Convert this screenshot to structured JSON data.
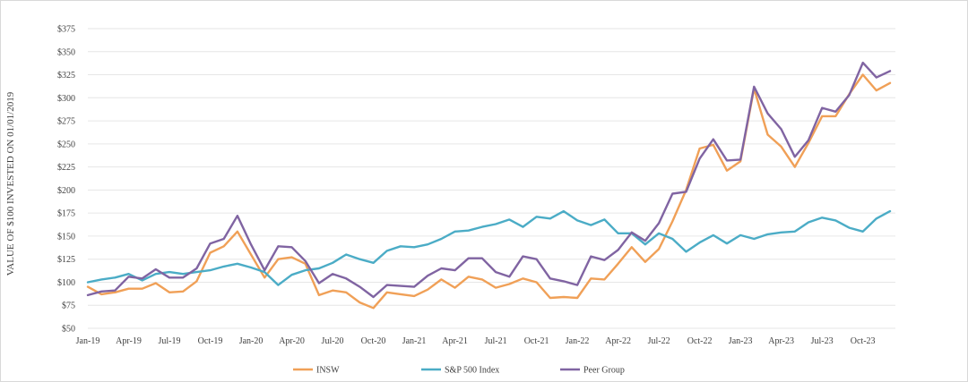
{
  "chart_data": {
    "type": "line",
    "title": "",
    "xlabel": "",
    "ylabel": "VALUE OF $100 INVESTED ON 01/01/2019",
    "ylim": [
      50,
      375
    ],
    "y_ticks": [
      50,
      75,
      100,
      125,
      150,
      175,
      200,
      225,
      250,
      275,
      300,
      325,
      350,
      375
    ],
    "y_tick_labels": [
      "$50",
      "$75",
      "$100",
      "$125",
      "$150",
      "$175",
      "$200",
      "$225",
      "$250",
      "$275",
      "$300",
      "$325",
      "$350",
      "$375"
    ],
    "x_tick_labels": [
      "Jan-19",
      "Apr-19",
      "Jul-19",
      "Oct-19",
      "Jan-20",
      "Apr-20",
      "Jul-20",
      "Oct-20",
      "Jan-21",
      "Apr-21",
      "Jul-21",
      "Oct-21",
      "Jan-22",
      "Apr-22",
      "Jul-22",
      "Oct-22",
      "Jan-23",
      "Apr-23",
      "Jul-23",
      "Oct-23"
    ],
    "x": [
      "Jan-19",
      "Feb-19",
      "Mar-19",
      "Apr-19",
      "May-19",
      "Jun-19",
      "Jul-19",
      "Aug-19",
      "Sep-19",
      "Oct-19",
      "Nov-19",
      "Dec-19",
      "Jan-20",
      "Feb-20",
      "Mar-20",
      "Apr-20",
      "May-20",
      "Jun-20",
      "Jul-20",
      "Aug-20",
      "Sep-20",
      "Oct-20",
      "Nov-20",
      "Dec-20",
      "Jan-21",
      "Feb-21",
      "Mar-21",
      "Apr-21",
      "May-21",
      "Jun-21",
      "Jul-21",
      "Aug-21",
      "Sep-21",
      "Oct-21",
      "Nov-21",
      "Dec-21",
      "Jan-22",
      "Feb-22",
      "Mar-22",
      "Apr-22",
      "May-22",
      "Jun-22",
      "Jul-22",
      "Aug-22",
      "Sep-22",
      "Oct-22",
      "Nov-22",
      "Dec-22",
      "Jan-23",
      "Feb-23",
      "Mar-23",
      "Apr-23",
      "May-23",
      "Jun-23",
      "Jul-23",
      "Aug-23",
      "Sep-23",
      "Oct-23",
      "Nov-23",
      "Dec-23"
    ],
    "grid": true,
    "legend_position": "bottom",
    "series": [
      {
        "name": "INSW",
        "color": "#F0A057",
        "values": [
          95,
          87,
          89,
          93,
          93,
          99,
          89,
          90,
          101,
          132,
          139,
          155,
          130,
          105,
          125,
          127,
          120,
          86,
          91,
          89,
          78,
          72,
          89,
          87,
          85,
          92,
          103,
          94,
          106,
          103,
          94,
          98,
          104,
          100,
          83,
          84,
          83,
          104,
          103,
          120,
          138,
          122,
          136,
          166,
          200,
          245,
          249,
          221,
          231,
          310,
          260,
          247,
          225,
          251,
          280,
          280,
          304,
          325,
          308,
          316
        ]
      },
      {
        "name": "S&P 500 Index",
        "color": "#4BACC6",
        "values": [
          100,
          103,
          105,
          109,
          102,
          109,
          111,
          109,
          111,
          113,
          117,
          120,
          116,
          111,
          97,
          108,
          113,
          115,
          121,
          130,
          125,
          121,
          134,
          139,
          138,
          141,
          147,
          155,
          156,
          160,
          163,
          168,
          160,
          171,
          169,
          177,
          167,
          162,
          168,
          153,
          153,
          141,
          153,
          147,
          133,
          143,
          151,
          142,
          151,
          147,
          152,
          154,
          155,
          165,
          170,
          167,
          159,
          155,
          169,
          177
        ]
      },
      {
        "name": "Peer Group",
        "color": "#8064A2",
        "values": [
          86,
          90,
          91,
          106,
          104,
          114,
          105,
          105,
          115,
          142,
          147,
          172,
          141,
          113,
          139,
          138,
          123,
          99,
          109,
          104,
          95,
          84,
          97,
          96,
          95,
          107,
          115,
          113,
          126,
          126,
          111,
          106,
          128,
          125,
          104,
          101,
          97,
          128,
          124,
          135,
          154,
          145,
          164,
          196,
          198,
          234,
          255,
          232,
          233,
          312,
          283,
          266,
          236,
          254,
          289,
          285,
          303,
          338,
          322,
          329
        ]
      }
    ]
  }
}
